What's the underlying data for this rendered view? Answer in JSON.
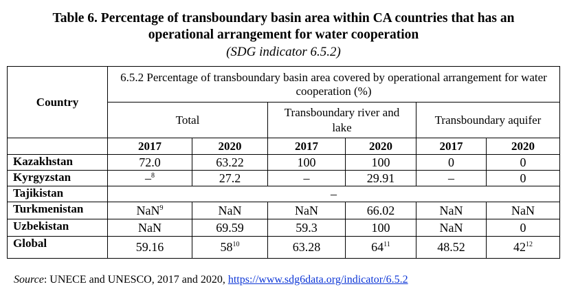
{
  "title_line1": "Table 6. Percentage of transboundary basin area within CA countries that has an",
  "title_line2": "operational arrangement for water cooperation",
  "subtitle": "(SDG indicator 6.5.2)",
  "table": {
    "col_country": "Country",
    "header_main": "6.5.2 Percentage of transboundary basin area covered by operational arrangement for water cooperation (%)",
    "groups": [
      "Total",
      "Transboundary river and lake",
      "Transboundary aquifer"
    ],
    "years": [
      "2017",
      "2020",
      "2017",
      "2020",
      "2017",
      "2020"
    ],
    "rows": [
      {
        "country": "Kazakhstan",
        "cells": [
          {
            "v": "72.0",
            "sup": ""
          },
          {
            "v": "63.22",
            "sup": ""
          },
          {
            "v": "100",
            "sup": ""
          },
          {
            "v": "100",
            "sup": ""
          },
          {
            "v": "0",
            "sup": ""
          },
          {
            "v": "0",
            "sup": ""
          }
        ]
      },
      {
        "country": "Kyrgyzstan",
        "cells": [
          {
            "v": "–",
            "sup": "8"
          },
          {
            "v": "27.2",
            "sup": ""
          },
          {
            "v": "–",
            "sup": ""
          },
          {
            "v": "29.91",
            "sup": ""
          },
          {
            "v": "–",
            "sup": ""
          },
          {
            "v": "0",
            "sup": ""
          }
        ]
      },
      {
        "country": "Tajikistan",
        "merged": "–"
      },
      {
        "country": "Turkmenistan",
        "cells": [
          {
            "v": "NaN",
            "sup": "9"
          },
          {
            "v": "NaN",
            "sup": ""
          },
          {
            "v": "NaN",
            "sup": ""
          },
          {
            "v": "66.02",
            "sup": ""
          },
          {
            "v": "NaN",
            "sup": ""
          },
          {
            "v": "NaN",
            "sup": ""
          }
        ]
      },
      {
        "country": "Uzbekistan",
        "cells": [
          {
            "v": "NaN",
            "sup": ""
          },
          {
            "v": "69.59",
            "sup": ""
          },
          {
            "v": "59.3",
            "sup": ""
          },
          {
            "v": "100",
            "sup": ""
          },
          {
            "v": "NaN",
            "sup": ""
          },
          {
            "v": "0",
            "sup": ""
          }
        ]
      },
      {
        "country": "Global",
        "cells": [
          {
            "v": "59.16",
            "sup": ""
          },
          {
            "v": "58",
            "sup": "10"
          },
          {
            "v": "63.28",
            "sup": ""
          },
          {
            "v": "64",
            "sup": "11"
          },
          {
            "v": "48.52",
            "sup": ""
          },
          {
            "v": "42",
            "sup": "12"
          }
        ]
      }
    ]
  },
  "source": {
    "label": "Source",
    "text": ": UNECE and UNESCO, 2017 and 2020, ",
    "link": "https://www.sdg6data.org/indicator/6.5.2"
  }
}
